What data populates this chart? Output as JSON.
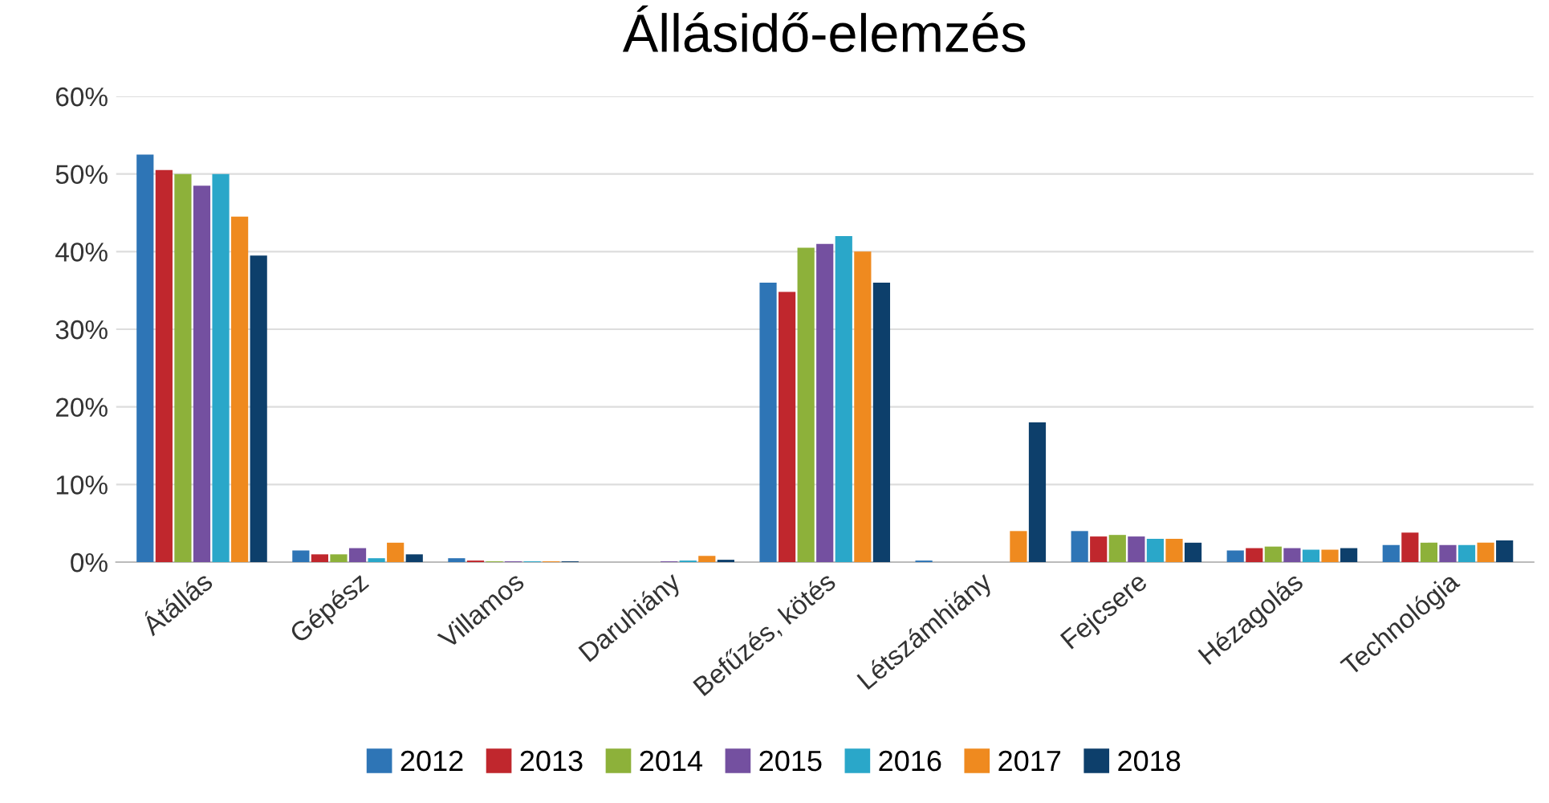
{
  "chart_data": {
    "type": "bar",
    "title": "Állásidő-elemzés",
    "categories": [
      "Átállás",
      "Gépész",
      "Villamos",
      "Daruhiány",
      "Befűzés, kötés",
      "Létszámhiány",
      "Fejcsere",
      "Hézagolás",
      "Technológia"
    ],
    "series": [
      {
        "name": "2012",
        "color": "#2e75b6",
        "values": [
          52.5,
          1.5,
          0.5,
          0,
          36,
          0.2,
          4,
          1.5,
          2.2
        ]
      },
      {
        "name": "2013",
        "color": "#c0272d",
        "values": [
          50.5,
          1,
          0.2,
          0,
          34.8,
          0,
          3.3,
          1.8,
          3.8
        ]
      },
      {
        "name": "2014",
        "color": "#8db13a",
        "values": [
          50,
          1,
          0.1,
          0,
          40.5,
          0,
          3.5,
          2,
          2.5
        ]
      },
      {
        "name": "2015",
        "color": "#7450a0",
        "values": [
          48.5,
          1.8,
          0.1,
          0.1,
          41,
          0,
          3.3,
          1.8,
          2.2
        ]
      },
      {
        "name": "2016",
        "color": "#2aa7c9",
        "values": [
          50,
          0.5,
          0.1,
          0.2,
          42,
          0,
          3,
          1.6,
          2.2
        ]
      },
      {
        "name": "2017",
        "color": "#ef8a1f",
        "values": [
          44.5,
          2.5,
          0.1,
          0.8,
          40,
          4,
          3,
          1.6,
          2.5
        ]
      },
      {
        "name": "2018",
        "color": "#0d3f6b",
        "values": [
          39.5,
          1,
          0.1,
          0.3,
          36,
          18,
          2.5,
          1.8,
          2.8
        ]
      }
    ],
    "ylim": [
      0,
      60
    ],
    "yticks": [
      {
        "value": 0,
        "label": "0%"
      },
      {
        "value": 10,
        "label": "10%"
      },
      {
        "value": 20,
        "label": "20%"
      },
      {
        "value": 30,
        "label": "30%"
      },
      {
        "value": 40,
        "label": "40%"
      },
      {
        "value": 50,
        "label": "50%"
      },
      {
        "value": 60,
        "label": "60%"
      }
    ],
    "grid": "y",
    "legend": "bottom"
  }
}
